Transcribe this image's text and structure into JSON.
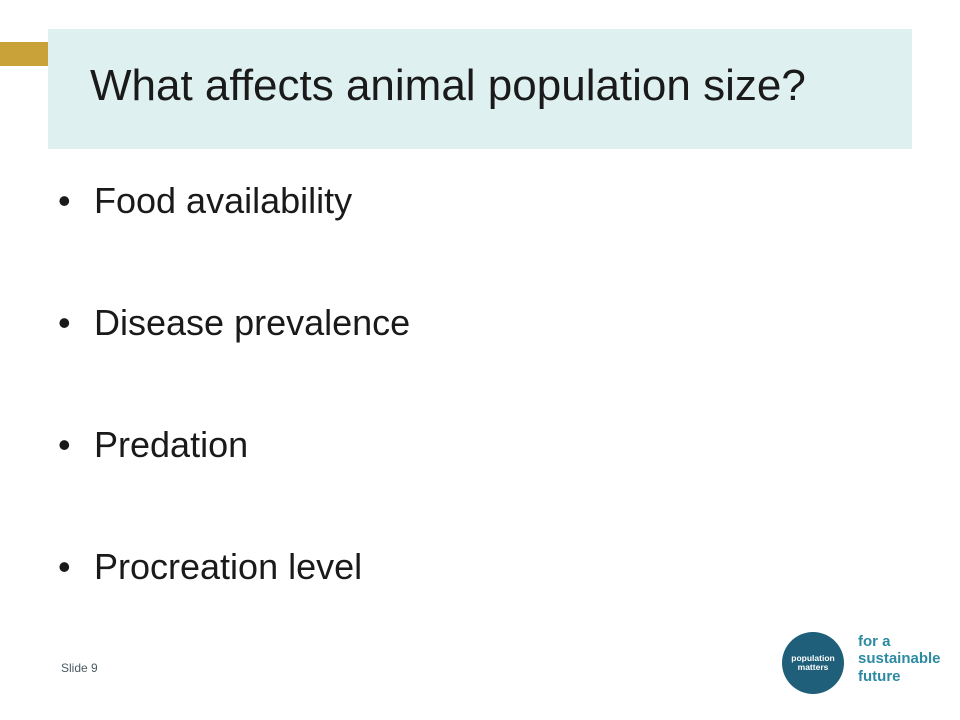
{
  "slide": {
    "title": "What affects animal population size?",
    "bullets": [
      "Food availability",
      "Disease prevalence",
      "Predation",
      "Procreation level"
    ],
    "bullet_glyph": "•",
    "slide_number": "Slide 9"
  },
  "logo": {
    "line1": "population",
    "line2": "matters",
    "tagline": [
      "for a",
      "sustainable",
      "future"
    ]
  },
  "colors": {
    "title_band": "#dff0f0",
    "accent": "#c9a23a",
    "logo": "#1f5f7a",
    "tagline": "#2d8aa3"
  }
}
